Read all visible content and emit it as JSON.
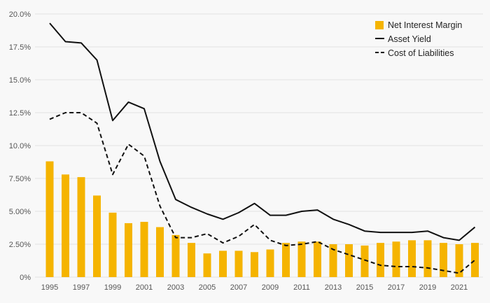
{
  "chart_data": {
    "type": "bar+line",
    "title": "",
    "xlabel": "",
    "ylabel": "",
    "ylim": [
      0,
      20
    ],
    "y_ticks": [
      "0%",
      "2.50%",
      "5.00%",
      "7.50%",
      "10.0%",
      "12.5%",
      "15.0%",
      "17.5%",
      "20.0%"
    ],
    "y_tick_values": [
      0,
      2.5,
      5,
      7.5,
      10,
      12.5,
      15,
      17.5,
      20
    ],
    "x": [
      1995,
      1996,
      1997,
      1998,
      1999,
      2000,
      2001,
      2002,
      2003,
      2004,
      2005,
      2006,
      2007,
      2008,
      2009,
      2010,
      2011,
      2012,
      2013,
      2014,
      2015,
      2016,
      2017,
      2018,
      2019,
      2020,
      2021,
      2022
    ],
    "x_tick_labels": [
      "1995",
      "1997",
      "1999",
      "2001",
      "2003",
      "2005",
      "2007",
      "2009",
      "2011",
      "2013",
      "2015",
      "2017",
      "2019",
      "2021"
    ],
    "grid": true,
    "legend_position": "top-right",
    "colors": {
      "bar": "#f5b400",
      "line": "#111111",
      "grid": "#e2e2e2",
      "background": "#f8f8f8"
    },
    "series": [
      {
        "name": "Net Interest Margin",
        "type": "bar",
        "values": [
          8.8,
          7.8,
          7.6,
          6.2,
          4.9,
          4.1,
          4.2,
          3.8,
          3.2,
          2.6,
          1.8,
          2.0,
          2.0,
          1.9,
          2.1,
          2.6,
          2.7,
          2.7,
          2.5,
          2.5,
          2.4,
          2.6,
          2.7,
          2.8,
          2.8,
          2.6,
          2.5,
          2.6
        ]
      },
      {
        "name": "Asset Yield",
        "type": "line",
        "style": "solid",
        "values": [
          19.3,
          17.9,
          17.8,
          16.5,
          11.9,
          13.3,
          12.8,
          8.8,
          5.9,
          5.3,
          4.8,
          4.4,
          4.9,
          5.6,
          4.7,
          4.7,
          5.0,
          5.1,
          4.4,
          4.0,
          3.5,
          3.4,
          3.4,
          3.4,
          3.5,
          3.0,
          2.8,
          3.8
        ]
      },
      {
        "name": "Cost of Liabilities",
        "type": "line",
        "style": "dashed",
        "values": [
          12.0,
          12.5,
          12.5,
          11.7,
          7.8,
          10.1,
          9.2,
          5.4,
          3.0,
          3.0,
          3.3,
          2.6,
          3.1,
          4.0,
          2.8,
          2.4,
          2.5,
          2.7,
          2.1,
          1.7,
          1.3,
          0.9,
          0.8,
          0.8,
          0.7,
          0.5,
          0.3,
          1.3
        ]
      }
    ]
  }
}
